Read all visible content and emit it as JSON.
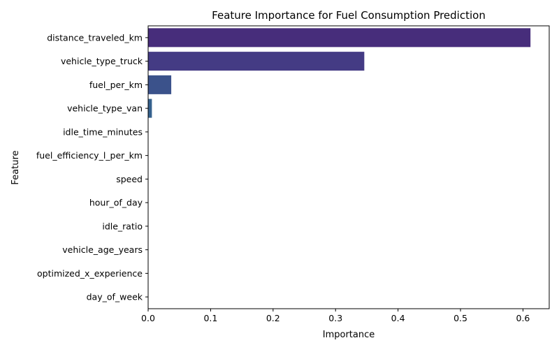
{
  "chart_data": {
    "type": "bar",
    "orientation": "horizontal",
    "title": "Feature Importance for Fuel Consumption Prediction",
    "xlabel": "Importance",
    "ylabel": "Feature",
    "xlim": [
      0,
      0.642
    ],
    "xticks": [
      0.0,
      0.1,
      0.2,
      0.3,
      0.4,
      0.5,
      0.6
    ],
    "xtick_labels": [
      "0.0",
      "0.1",
      "0.2",
      "0.3",
      "0.4",
      "0.5",
      "0.6"
    ],
    "grid": false,
    "categories": [
      "distance_traveled_km",
      "vehicle_type_truck",
      "fuel_per_km",
      "vehicle_type_van",
      "idle_time_minutes",
      "fuel_efficiency_l_per_km",
      "speed",
      "hour_of_day",
      "idle_ratio",
      "vehicle_age_years",
      "optimized_x_experience",
      "day_of_week"
    ],
    "values": [
      0.612,
      0.346,
      0.037,
      0.006,
      0,
      0,
      0,
      0,
      0,
      0,
      0,
      0
    ],
    "colors": [
      "#472d7b",
      "#443b84",
      "#3b528b",
      "#35618d",
      "#2c728e",
      "#24828e",
      "#1f928c",
      "#26a485",
      "#3db87a",
      "#62c965",
      "#94d645",
      "#cde11d"
    ]
  }
}
